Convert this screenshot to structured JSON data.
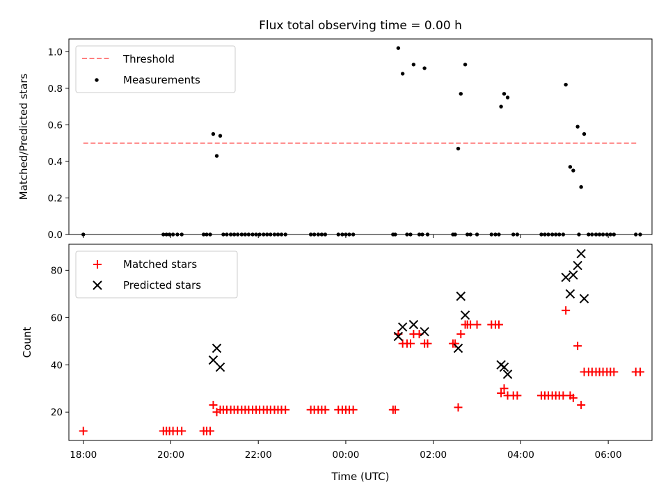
{
  "figure": {
    "title": "Flux total observing time = 0.00 h"
  },
  "chart_data": [
    {
      "type": "scatter",
      "ylabel": "Matched/Predicted stars",
      "xlabel": "",
      "xlim": [
        17.67,
        7.0
      ],
      "x_wrap_after_midnight": true,
      "ylim": [
        0.0,
        1.07
      ],
      "yticks": [
        0.0,
        0.2,
        0.4,
        0.6,
        0.8,
        1.0
      ],
      "ytick_labels": [
        "0.0",
        "0.2",
        "0.4",
        "0.6",
        "0.8",
        "1.0"
      ],
      "grid": false,
      "legend_position": "top-left",
      "threshold": {
        "name": "Threshold",
        "y": 0.5,
        "x_range": [
          18.0,
          6.67
        ],
        "color": "#ff7f7f",
        "style": "dashed"
      },
      "series": [
        {
          "name": "Measurements",
          "color": "#000000",
          "marker": "dot",
          "points": [
            [
              18.0,
              0.0
            ],
            [
              19.83,
              0.0
            ],
            [
              19.9,
              0.0
            ],
            [
              19.97,
              0.0
            ],
            [
              20.05,
              0.0
            ],
            [
              20.15,
              0.0
            ],
            [
              20.25,
              0.0
            ],
            [
              20.75,
              0.0
            ],
            [
              20.82,
              0.0
            ],
            [
              20.9,
              0.0
            ],
            [
              20.97,
              0.55
            ],
            [
              21.05,
              0.43
            ],
            [
              21.13,
              0.54
            ],
            [
              21.2,
              0.0
            ],
            [
              21.28,
              0.0
            ],
            [
              21.37,
              0.0
            ],
            [
              21.45,
              0.0
            ],
            [
              21.53,
              0.0
            ],
            [
              21.62,
              0.0
            ],
            [
              21.7,
              0.0
            ],
            [
              21.78,
              0.0
            ],
            [
              21.87,
              0.0
            ],
            [
              21.95,
              0.0
            ],
            [
              22.03,
              0.0
            ],
            [
              22.12,
              0.0
            ],
            [
              22.2,
              0.0
            ],
            [
              22.28,
              0.0
            ],
            [
              22.37,
              0.0
            ],
            [
              22.45,
              0.0
            ],
            [
              22.53,
              0.0
            ],
            [
              22.62,
              0.0
            ],
            [
              23.2,
              0.0
            ],
            [
              23.28,
              0.0
            ],
            [
              23.37,
              0.0
            ],
            [
              23.45,
              0.0
            ],
            [
              23.53,
              0.0
            ],
            [
              23.83,
              0.0
            ],
            [
              23.92,
              0.0
            ],
            [
              24.0,
              0.0
            ],
            [
              24.08,
              0.0
            ],
            [
              24.17,
              0.0
            ],
            [
              25.08,
              0.0
            ],
            [
              25.13,
              0.0
            ],
            [
              25.2,
              1.02
            ],
            [
              25.3,
              0.88
            ],
            [
              25.55,
              0.93
            ],
            [
              25.8,
              0.91
            ],
            [
              25.4,
              0.0
            ],
            [
              25.48,
              0.0
            ],
            [
              25.68,
              0.0
            ],
            [
              25.75,
              0.0
            ],
            [
              25.87,
              0.0
            ],
            [
              26.45,
              0.0
            ],
            [
              26.5,
              0.0
            ],
            [
              26.57,
              0.47
            ],
            [
              26.63,
              0.77
            ],
            [
              26.73,
              0.93
            ],
            [
              26.78,
              0.0
            ],
            [
              26.85,
              0.0
            ],
            [
              27.0,
              0.0
            ],
            [
              27.33,
              0.0
            ],
            [
              27.42,
              0.0
            ],
            [
              27.5,
              0.0
            ],
            [
              27.55,
              0.7
            ],
            [
              27.62,
              0.77
            ],
            [
              27.7,
              0.75
            ],
            [
              27.83,
              0.0
            ],
            [
              27.92,
              0.0
            ],
            [
              28.47,
              0.0
            ],
            [
              28.55,
              0.0
            ],
            [
              28.63,
              0.0
            ],
            [
              28.72,
              0.0
            ],
            [
              28.8,
              0.0
            ],
            [
              28.88,
              0.0
            ],
            [
              28.97,
              0.0
            ],
            [
              29.03,
              0.82
            ],
            [
              29.13,
              0.37
            ],
            [
              29.2,
              0.35
            ],
            [
              29.3,
              0.59
            ],
            [
              29.38,
              0.26
            ],
            [
              29.45,
              0.55
            ],
            [
              29.33,
              0.0
            ],
            [
              29.55,
              0.0
            ],
            [
              29.63,
              0.0
            ],
            [
              29.72,
              0.0
            ],
            [
              29.8,
              0.0
            ],
            [
              29.88,
              0.0
            ],
            [
              29.97,
              0.0
            ],
            [
              30.05,
              0.0
            ],
            [
              30.13,
              0.0
            ],
            [
              30.63,
              0.0
            ],
            [
              30.73,
              0.0
            ]
          ]
        }
      ]
    },
    {
      "type": "scatter",
      "ylabel": "Count",
      "xlabel": "Time (UTC)",
      "xlim": [
        17.67,
        7.0
      ],
      "x_wrap_after_midnight": true,
      "ylim": [
        8,
        91
      ],
      "yticks": [
        20,
        40,
        60,
        80
      ],
      "ytick_labels": [
        "20",
        "40",
        "60",
        "80"
      ],
      "xticks": [
        18,
        20,
        22,
        24,
        26,
        28,
        30
      ],
      "xtick_labels": [
        "18:00",
        "20:00",
        "22:00",
        "00:00",
        "02:00",
        "04:00",
        "06:00"
      ],
      "grid": false,
      "legend_position": "top-left",
      "series": [
        {
          "name": "Matched stars",
          "color": "#ff0000",
          "marker": "plus",
          "points": [
            [
              18.0,
              12
            ],
            [
              19.83,
              12
            ],
            [
              19.9,
              12
            ],
            [
              19.97,
              12
            ],
            [
              20.05,
              12
            ],
            [
              20.15,
              12
            ],
            [
              20.25,
              12
            ],
            [
              20.75,
              12
            ],
            [
              20.82,
              12
            ],
            [
              20.9,
              12
            ],
            [
              20.97,
              23
            ],
            [
              21.05,
              20
            ],
            [
              21.13,
              21
            ],
            [
              21.2,
              21
            ],
            [
              21.28,
              21
            ],
            [
              21.37,
              21
            ],
            [
              21.45,
              21
            ],
            [
              21.53,
              21
            ],
            [
              21.62,
              21
            ],
            [
              21.7,
              21
            ],
            [
              21.78,
              21
            ],
            [
              21.87,
              21
            ],
            [
              21.95,
              21
            ],
            [
              22.03,
              21
            ],
            [
              22.12,
              21
            ],
            [
              22.2,
              21
            ],
            [
              22.28,
              21
            ],
            [
              22.37,
              21
            ],
            [
              22.45,
              21
            ],
            [
              22.53,
              21
            ],
            [
              22.62,
              21
            ],
            [
              23.2,
              21
            ],
            [
              23.28,
              21
            ],
            [
              23.37,
              21
            ],
            [
              23.45,
              21
            ],
            [
              23.53,
              21
            ],
            [
              23.83,
              21
            ],
            [
              23.92,
              21
            ],
            [
              24.0,
              21
            ],
            [
              24.08,
              21
            ],
            [
              24.17,
              21
            ],
            [
              25.08,
              21
            ],
            [
              25.13,
              21
            ],
            [
              25.2,
              53
            ],
            [
              25.3,
              49
            ],
            [
              25.4,
              49
            ],
            [
              25.48,
              49
            ],
            [
              25.55,
              53
            ],
            [
              25.68,
              53
            ],
            [
              25.8,
              49
            ],
            [
              25.87,
              49
            ],
            [
              26.45,
              49
            ],
            [
              26.5,
              49
            ],
            [
              26.57,
              22
            ],
            [
              26.63,
              53
            ],
            [
              26.73,
              57
            ],
            [
              26.78,
              57
            ],
            [
              26.85,
              57
            ],
            [
              27.0,
              57
            ],
            [
              27.33,
              57
            ],
            [
              27.42,
              57
            ],
            [
              27.5,
              57
            ],
            [
              27.55,
              28
            ],
            [
              27.62,
              30
            ],
            [
              27.7,
              27
            ],
            [
              27.83,
              27
            ],
            [
              27.92,
              27
            ],
            [
              28.47,
              27
            ],
            [
              28.55,
              27
            ],
            [
              28.63,
              27
            ],
            [
              28.72,
              27
            ],
            [
              28.8,
              27
            ],
            [
              28.88,
              27
            ],
            [
              28.97,
              27
            ],
            [
              29.03,
              63
            ],
            [
              29.13,
              27
            ],
            [
              29.2,
              26
            ],
            [
              29.3,
              48
            ],
            [
              29.38,
              23
            ],
            [
              29.45,
              37
            ],
            [
              29.55,
              37
            ],
            [
              29.63,
              37
            ],
            [
              29.72,
              37
            ],
            [
              29.8,
              37
            ],
            [
              29.88,
              37
            ],
            [
              29.97,
              37
            ],
            [
              30.05,
              37
            ],
            [
              30.13,
              37
            ],
            [
              30.63,
              37
            ],
            [
              30.73,
              37
            ]
          ]
        },
        {
          "name": "Predicted stars",
          "color": "#000000",
          "marker": "cross",
          "points": [
            [
              20.97,
              42
            ],
            [
              21.05,
              47
            ],
            [
              21.13,
              39
            ],
            [
              25.2,
              52
            ],
            [
              25.3,
              56
            ],
            [
              25.55,
              57
            ],
            [
              25.8,
              54
            ],
            [
              26.57,
              47
            ],
            [
              26.63,
              69
            ],
            [
              26.73,
              61
            ],
            [
              27.55,
              40
            ],
            [
              27.62,
              39
            ],
            [
              27.7,
              36
            ],
            [
              29.03,
              77
            ],
            [
              29.13,
              70
            ],
            [
              29.2,
              78
            ],
            [
              29.3,
              82
            ],
            [
              29.38,
              87
            ],
            [
              29.45,
              68
            ]
          ]
        }
      ]
    }
  ]
}
